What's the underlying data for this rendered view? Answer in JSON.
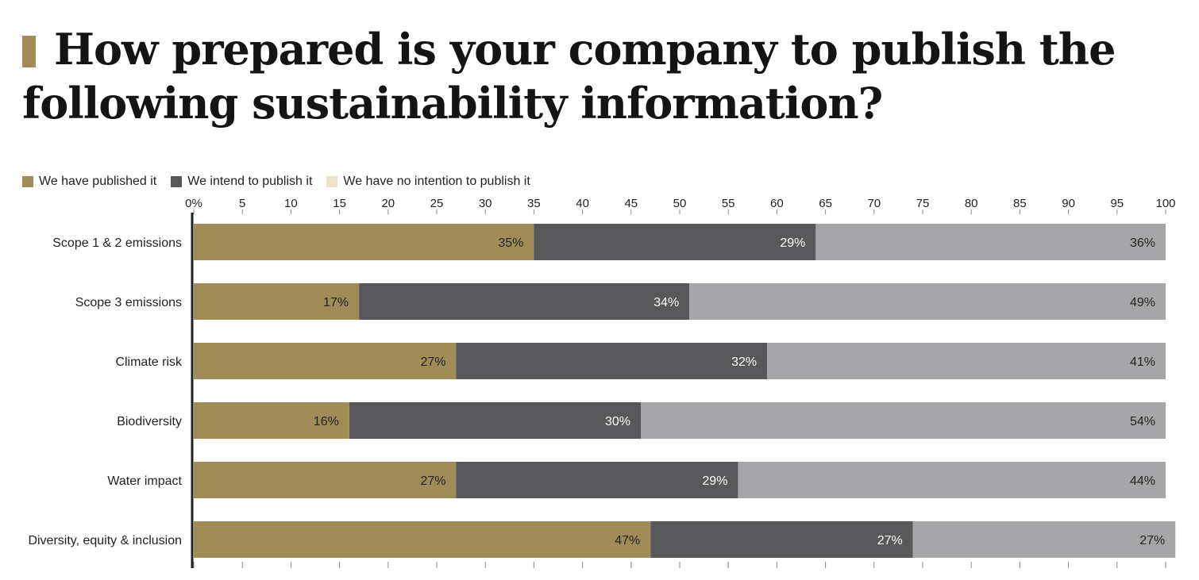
{
  "title": "How prepared is your company to publish the following sustainability information?",
  "legend": [
    {
      "label": "We have published it",
      "color": "#a08c57"
    },
    {
      "label": "We intend to publish it",
      "color": "#58585a"
    },
    {
      "label": "We have no intention to publish it",
      "color": "#ece3c8"
    }
  ],
  "chart_data": {
    "type": "bar",
    "orientation": "horizontal",
    "stacked": true,
    "title": "How prepared is your company to publish the following sustainability information?",
    "xlim": [
      0,
      100
    ],
    "xticks": [
      0,
      5,
      10,
      15,
      20,
      25,
      30,
      35,
      40,
      45,
      50,
      55,
      60,
      65,
      70,
      75,
      80,
      85,
      90,
      95,
      100
    ],
    "xtick_labels": [
      "0%",
      "5",
      "10",
      "15",
      "20",
      "25",
      "30",
      "35",
      "40",
      "45",
      "50",
      "55",
      "60",
      "65",
      "70",
      "75",
      "80",
      "85",
      "90",
      "95",
      "100"
    ],
    "grid": false,
    "legend_position": "top-left",
    "categories": [
      "Scope 1 & 2 emissions",
      "Scope 3 emissions",
      "Climate risk",
      "Biodiversity",
      "Water impact",
      "Diversity, equity & inclusion"
    ],
    "series": [
      {
        "name": "We have published it",
        "values": [
          35,
          17,
          27,
          16,
          27,
          47
        ],
        "labels": [
          "35%",
          "17%",
          "27%",
          "16%",
          "27%",
          "47%"
        ],
        "color": "#a08c57",
        "label_color": "#222222"
      },
      {
        "name": "We intend to publish it",
        "values": [
          29,
          34,
          32,
          30,
          29,
          27
        ],
        "labels": [
          "29%",
          "34%",
          "32%",
          "30%",
          "29%",
          "27%"
        ],
        "color": "#58585a",
        "label_color": "#ffffff"
      },
      {
        "name": "We have no intention to publish it",
        "values": [
          36,
          49,
          41,
          54,
          44,
          27
        ],
        "labels": [
          "36%",
          "49%",
          "41%",
          "54%",
          "44%",
          "27%"
        ],
        "color": "#a6a6a9",
        "label_color": "#222222"
      }
    ]
  }
}
